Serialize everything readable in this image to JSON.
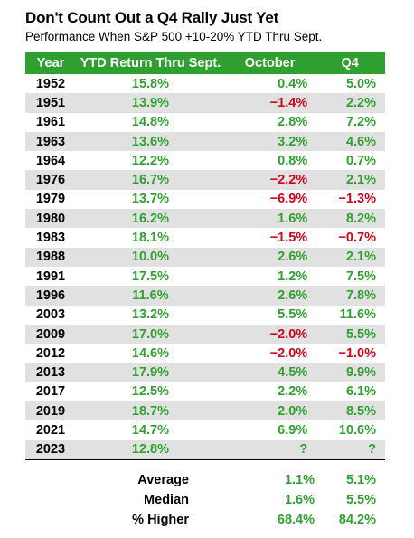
{
  "title": "Don't Count Out a Q4 Rally Just Yet",
  "subtitle": "Performance When S&P 500 +10-20% YTD Thru Sept.",
  "colors": {
    "header_bg": "#2f9f2f",
    "positive": "#2f9f2f",
    "negative": "#d0021b",
    "stripe": "#e1e1e1"
  },
  "chart_data": {
    "type": "table",
    "columns": [
      "Year",
      "YTD Return Thru Sept.",
      "October",
      "Q4"
    ],
    "rows": [
      [
        "1952",
        "15.8%",
        "0.4%",
        "5.0%"
      ],
      [
        "1951",
        "13.9%",
        "−1.4%",
        "2.2%"
      ],
      [
        "1961",
        "14.8%",
        "2.8%",
        "7.2%"
      ],
      [
        "1963",
        "13.6%",
        "3.2%",
        "4.6%"
      ],
      [
        "1964",
        "12.2%",
        "0.8%",
        "0.7%"
      ],
      [
        "1976",
        "16.7%",
        "−2.2%",
        "2.1%"
      ],
      [
        "1979",
        "13.7%",
        "−6.9%",
        "−1.3%"
      ],
      [
        "1980",
        "16.2%",
        "1.6%",
        "8.2%"
      ],
      [
        "1983",
        "18.1%",
        "−1.5%",
        "−0.7%"
      ],
      [
        "1988",
        "10.0%",
        "2.6%",
        "2.1%"
      ],
      [
        "1991",
        "17.5%",
        "1.2%",
        "7.5%"
      ],
      [
        "1996",
        "11.6%",
        "2.6%",
        "7.8%"
      ],
      [
        "2003",
        "13.2%",
        "5.5%",
        "11.6%"
      ],
      [
        "2009",
        "17.0%",
        "−2.0%",
        "5.5%"
      ],
      [
        "2012",
        "14.6%",
        "−2.0%",
        "−1.0%"
      ],
      [
        "2013",
        "17.9%",
        "4.5%",
        "9.9%"
      ],
      [
        "2017",
        "12.5%",
        "2.2%",
        "6.1%"
      ],
      [
        "2019",
        "18.7%",
        "2.0%",
        "8.5%"
      ],
      [
        "2021",
        "14.7%",
        "6.9%",
        "10.6%"
      ],
      [
        "2023",
        "12.8%",
        "?",
        "?"
      ]
    ],
    "summary": [
      {
        "label": "Average",
        "october": "1.1%",
        "q4": "5.1%"
      },
      {
        "label": "Median",
        "october": "1.6%",
        "q4": "5.5%"
      },
      {
        "label": "% Higher",
        "october": "68.4%",
        "q4": "84.2%"
      }
    ]
  }
}
